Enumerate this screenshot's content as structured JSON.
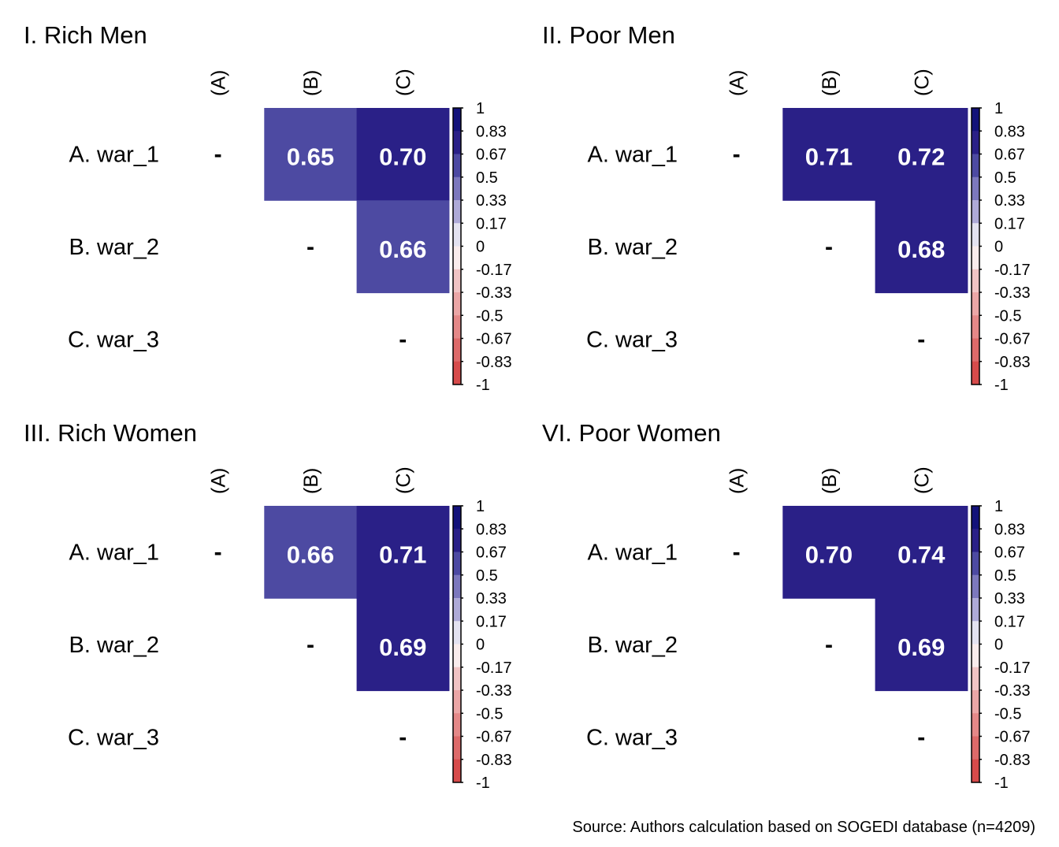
{
  "chart_data": {
    "type": "heatmap",
    "description": "Correlation matrices (upper triangle) of war_1, war_2, war_3 by group",
    "row_labels": [
      "A. war_1",
      "B. war_2",
      "C. war_3"
    ],
    "col_labels": [
      "(A)",
      "(B)",
      "(C)"
    ],
    "diagonal_label": "-",
    "colorbar": {
      "ticks": [
        "1",
        "0.83",
        "0.67",
        "0.5",
        "0.33",
        "0.17",
        "0",
        "-0.17",
        "-0.33",
        "-0.5",
        "-0.67",
        "-0.83",
        "-1"
      ],
      "range": [
        -1,
        1
      ],
      "bin_colors_top_to_bottom": [
        "#13127a",
        "#2a2087",
        "#4d4aa2",
        "#7c78bd",
        "#aeaad7",
        "#e3e2f0",
        "#f9ecec",
        "#f1c4c4",
        "#eba6a6",
        "#e48888",
        "#dd6a6a",
        "#d64b4b"
      ]
    },
    "panels": [
      {
        "title": "I. Rich Men",
        "cells": [
          {
            "row": 0,
            "col": 1,
            "value": 0.65,
            "label": "0.65"
          },
          {
            "row": 0,
            "col": 2,
            "value": 0.7,
            "label": "0.70"
          },
          {
            "row": 1,
            "col": 2,
            "value": 0.66,
            "label": "0.66"
          }
        ]
      },
      {
        "title": "II. Poor Men",
        "cells": [
          {
            "row": 0,
            "col": 1,
            "value": 0.71,
            "label": "0.71"
          },
          {
            "row": 0,
            "col": 2,
            "value": 0.72,
            "label": "0.72"
          },
          {
            "row": 1,
            "col": 2,
            "value": 0.68,
            "label": "0.68"
          }
        ]
      },
      {
        "title": "III. Rich Women",
        "cells": [
          {
            "row": 0,
            "col": 1,
            "value": 0.66,
            "label": "0.66"
          },
          {
            "row": 0,
            "col": 2,
            "value": 0.71,
            "label": "0.71"
          },
          {
            "row": 1,
            "col": 2,
            "value": 0.69,
            "label": "0.69"
          }
        ]
      },
      {
        "title": "VI. Poor Women",
        "cells": [
          {
            "row": 0,
            "col": 1,
            "value": 0.7,
            "label": "0.70"
          },
          {
            "row": 0,
            "col": 2,
            "value": 0.74,
            "label": "0.74"
          },
          {
            "row": 1,
            "col": 2,
            "value": 0.69,
            "label": "0.69"
          }
        ]
      }
    ],
    "source": "Source: Authors calculation based on SOGEDI database (n=4209)"
  }
}
